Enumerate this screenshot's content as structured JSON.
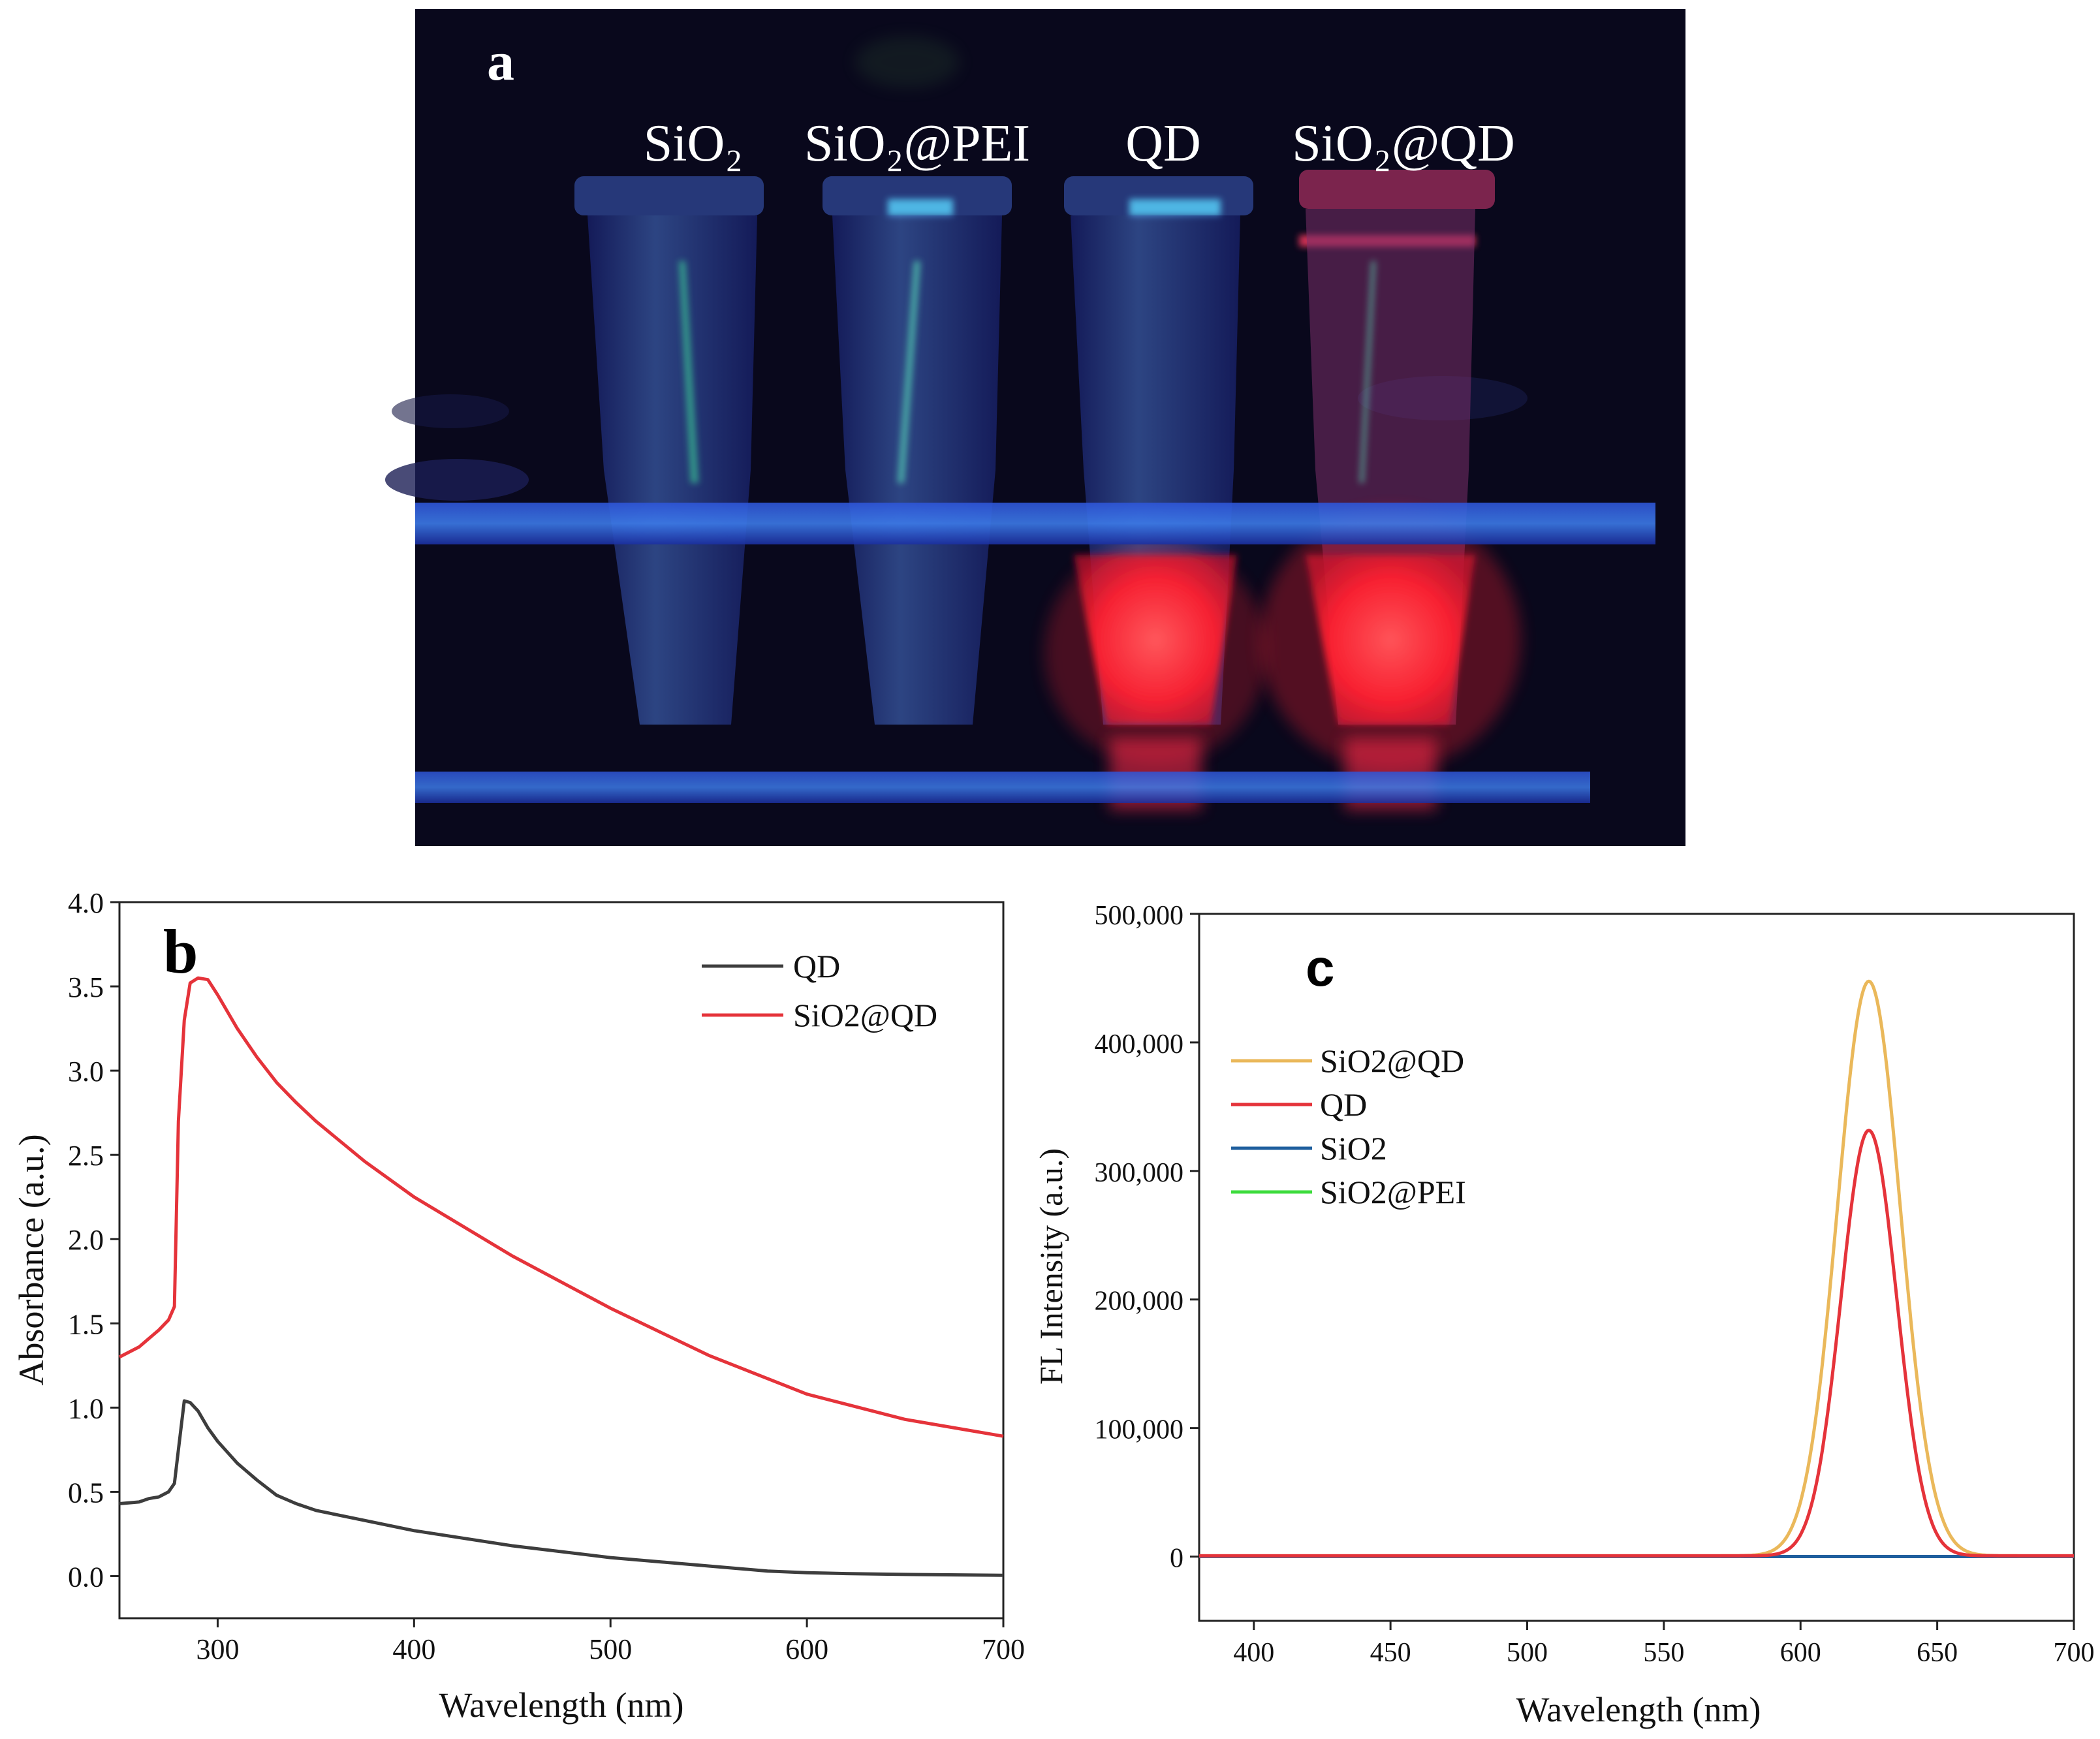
{
  "photo": {
    "panel_label": "a",
    "tubes": [
      {
        "label": "SiO₂",
        "fluorescence": "none",
        "glow_color": "#3a6fd0"
      },
      {
        "label": "SiO₂@PEI",
        "fluorescence": "none",
        "glow_color": "#3a6fd0"
      },
      {
        "label": "QD",
        "fluorescence": "red",
        "glow_color": "#ff2a3c"
      },
      {
        "label": "SiO₂@QD",
        "fluorescence": "red",
        "glow_color": "#ff2a3c"
      }
    ]
  },
  "chart_data": [
    {
      "panel_label": "b",
      "type": "line",
      "xlabel": "Wavelength (nm)",
      "ylabel": "Absorbance (a.u.)",
      "xlim": [
        250,
        700
      ],
      "ylim": [
        -0.25,
        4.0
      ],
      "xticks": [
        300,
        400,
        500,
        600,
        700
      ],
      "yticks": [
        0.0,
        0.5,
        1.0,
        1.5,
        2.0,
        2.5,
        3.0,
        3.5,
        4.0
      ],
      "ytick_labels": [
        "0.0",
        "0.5",
        "1.0",
        "1.5",
        "2.0",
        "2.5",
        "3.0",
        "3.5",
        "4.0"
      ],
      "legend_position": "top-right",
      "series": [
        {
          "name": "QD",
          "color": "#3d3d3d",
          "x": [
            250,
            260,
            265,
            270,
            275,
            278,
            280,
            283,
            286,
            290,
            295,
            300,
            310,
            320,
            330,
            340,
            350,
            375,
            400,
            450,
            500,
            550,
            580,
            600,
            620,
            650,
            700
          ],
          "y": [
            0.43,
            0.44,
            0.46,
            0.47,
            0.5,
            0.55,
            0.75,
            1.04,
            1.03,
            0.98,
            0.88,
            0.8,
            0.67,
            0.57,
            0.48,
            0.43,
            0.39,
            0.33,
            0.27,
            0.18,
            0.11,
            0.06,
            0.03,
            0.02,
            0.015,
            0.01,
            0.005
          ]
        },
        {
          "name": "SiO2@QD",
          "color": "#e5333a",
          "x": [
            250,
            260,
            265,
            270,
            275,
            278,
            280,
            283,
            286,
            290,
            295,
            300,
            310,
            320,
            330,
            340,
            350,
            375,
            400,
            450,
            500,
            550,
            600,
            620,
            650,
            680,
            700
          ],
          "y": [
            1.3,
            1.36,
            1.41,
            1.46,
            1.52,
            1.6,
            2.7,
            3.3,
            3.52,
            3.55,
            3.54,
            3.45,
            3.25,
            3.08,
            2.93,
            2.81,
            2.7,
            2.46,
            2.25,
            1.9,
            1.59,
            1.31,
            1.08,
            1.02,
            0.93,
            0.87,
            0.83
          ]
        }
      ]
    },
    {
      "panel_label": "c",
      "type": "line",
      "xlabel": "Wavelength (nm)",
      "ylabel": "FL Intensity (a.u.)",
      "xlim": [
        380,
        700
      ],
      "ylim": [
        -50000,
        500000
      ],
      "xticks": [
        400,
        450,
        500,
        550,
        600,
        650,
        700
      ],
      "yticks": [
        0,
        100000,
        200000,
        300000,
        400000,
        500000
      ],
      "ytick_labels": [
        "0",
        "100,000",
        "200,000",
        "300,000",
        "400,000",
        "500,000"
      ],
      "legend_position": "top-left",
      "series": [
        {
          "name": "SiO2@QD",
          "color": "#eab85a",
          "peak_center": 625,
          "peak_height": 447000,
          "peak_sigma": 11.5,
          "baseline": 600
        },
        {
          "name": "QD",
          "color": "#e5333a",
          "peak_center": 625,
          "peak_height": 331000,
          "peak_sigma": 10.2,
          "baseline": 600
        },
        {
          "name": "SiO2",
          "color": "#1f5f9e",
          "peak_center": 625,
          "peak_height": 0,
          "peak_sigma": 10,
          "baseline": 0
        },
        {
          "name": "SiO2@PEI",
          "color": "#3ddc3d",
          "peak_center": 625,
          "peak_height": 0,
          "peak_sigma": 10,
          "baseline": 0
        }
      ]
    }
  ]
}
